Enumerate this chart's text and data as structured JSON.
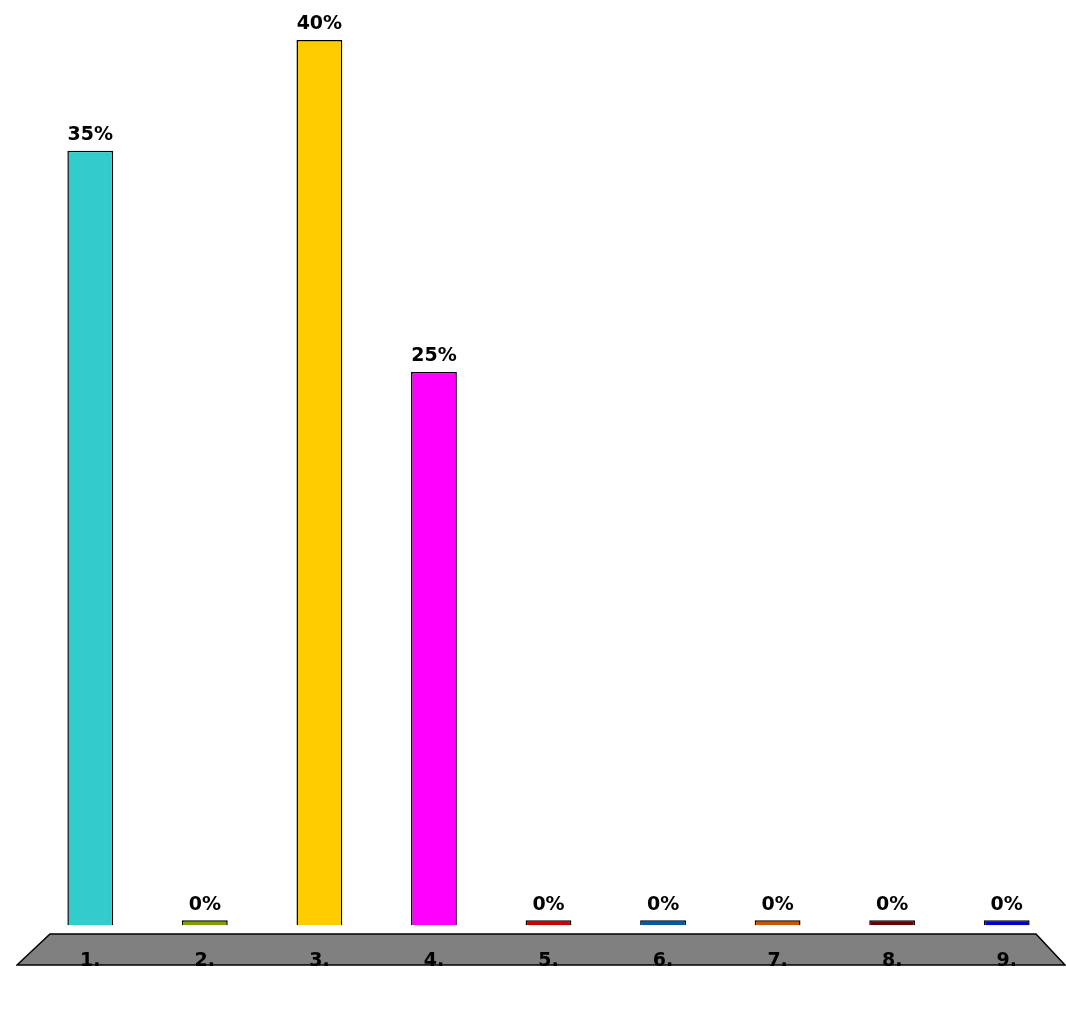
{
  "chart_data": {
    "type": "bar",
    "categories": [
      "1.",
      "2.",
      "3.",
      "4.",
      "5.",
      "6.",
      "7.",
      "8.",
      "9."
    ],
    "values": [
      35,
      0,
      40,
      25,
      0,
      0,
      0,
      0,
      0
    ],
    "colors": [
      "#33cccc",
      "#7f9f00",
      "#ffcc00",
      "#ff00ff",
      "#cc0000",
      "#005ba0",
      "#cc5500",
      "#660000",
      "#0000cc"
    ],
    "value_labels": [
      "35%",
      "0%",
      "40%",
      "25%",
      "0%",
      "0%",
      "0%",
      "0%",
      "0%"
    ],
    "grid": false,
    "legend": false
  }
}
